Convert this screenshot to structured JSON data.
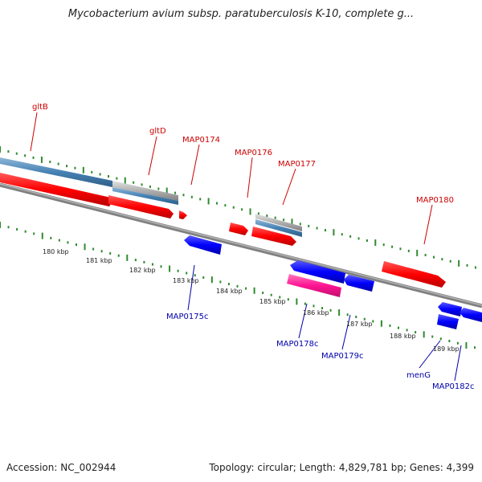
{
  "title": "Mycobacterium avium subsp. paratuberculosis K-10, complete g...",
  "accession": "Accession: NC_002944",
  "topology": "Topology: circular; Length: 4,829,781 bp; Genes: 4,399",
  "colors": {
    "forward_gene": "#ff0000",
    "reverse_gene": "#0000ff",
    "forward_label": "#cc0000",
    "reverse_label": "#0000aa",
    "tick": "#2e8b2e",
    "backbone": "#808080",
    "rna": "#4682b4",
    "pseudo": "#ff1493",
    "misc": "#b0b0b0"
  },
  "kbp_labels": [
    "180 kbp",
    "181 kbp",
    "182 kbp",
    "183 kbp",
    "184 kbp",
    "185 kbp",
    "186 kbp",
    "187 kbp",
    "188 kbp",
    "189 kbp"
  ],
  "forward_genes": [
    "gltB",
    "gltD",
    "MAP0174",
    "MAP0176",
    "MAP0177",
    "MAP0180"
  ],
  "reverse_genes": [
    "MAP0175c",
    "MAP0178c",
    "MAP0179c",
    "menG",
    "MAP0182c"
  ]
}
